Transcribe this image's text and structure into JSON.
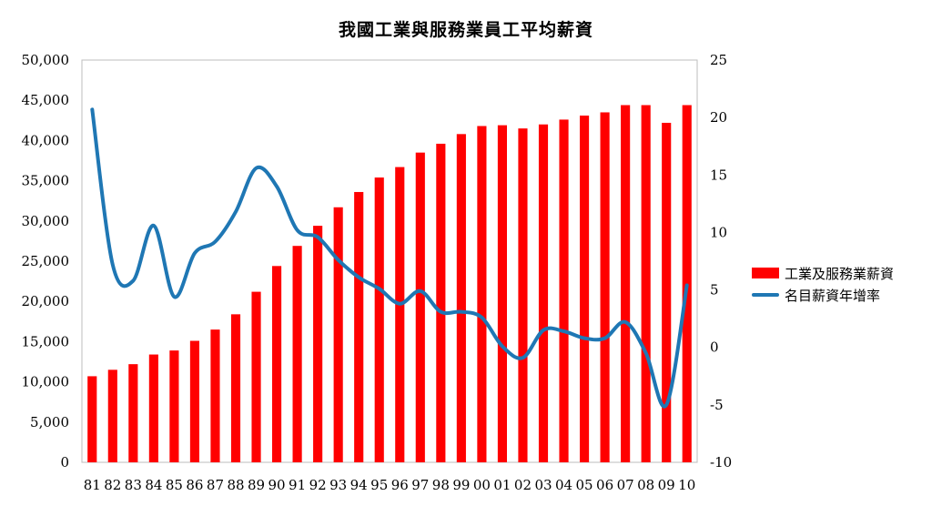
{
  "chart_data": {
    "type": "bar",
    "title": "我國工業與服務業員工平均薪資",
    "categories": [
      "81",
      "82",
      "83",
      "84",
      "85",
      "86",
      "87",
      "88",
      "89",
      "90",
      "91",
      "92",
      "93",
      "94",
      "95",
      "96",
      "97",
      "98",
      "99",
      "00",
      "01",
      "02",
      "03",
      "04",
      "05",
      "06",
      "07",
      "08",
      "09",
      "10"
    ],
    "series": [
      {
        "name": "工業及服務業薪資",
        "type": "bar",
        "axis": "left",
        "color": "#ff0000",
        "values": [
          10700,
          11500,
          12200,
          13400,
          13900,
          15100,
          16500,
          18400,
          21200,
          24400,
          26900,
          29400,
          31700,
          33600,
          35400,
          36700,
          38500,
          39600,
          40800,
          41800,
          41900,
          41500,
          42000,
          42600,
          43100,
          43500,
          44400,
          44400,
          42200,
          44400
        ]
      },
      {
        "name": "名目薪資年增率",
        "type": "line",
        "axis": "right",
        "color": "#1f77b4",
        "values": [
          20.7,
          7.2,
          5.8,
          10.6,
          4.4,
          8.2,
          9.2,
          11.8,
          15.6,
          14.0,
          10.2,
          9.6,
          7.6,
          6.1,
          5.1,
          3.8,
          4.9,
          3.1,
          3.1,
          2.6,
          0.1,
          -0.9,
          1.5,
          1.4,
          0.8,
          0.8,
          2.2,
          -0.5,
          -5.0,
          5.4
        ]
      }
    ],
    "left_axis": {
      "ylim": [
        0,
        50000
      ],
      "ticks": [
        0,
        5000,
        10000,
        15000,
        20000,
        25000,
        30000,
        35000,
        40000,
        45000,
        50000
      ],
      "tick_labels": [
        "0",
        "5,000",
        "10,000",
        "15,000",
        "20,000",
        "25,000",
        "30,000",
        "35,000",
        "40,000",
        "45,000",
        "50,000"
      ]
    },
    "right_axis": {
      "ylim": [
        -10,
        25
      ],
      "ticks": [
        -10,
        -5,
        0,
        5,
        10,
        15,
        20,
        25
      ],
      "tick_labels": [
        "-10",
        "-5",
        "0",
        "5",
        "10",
        "15",
        "20",
        "25"
      ]
    },
    "grid": false,
    "legend_position": "right"
  }
}
